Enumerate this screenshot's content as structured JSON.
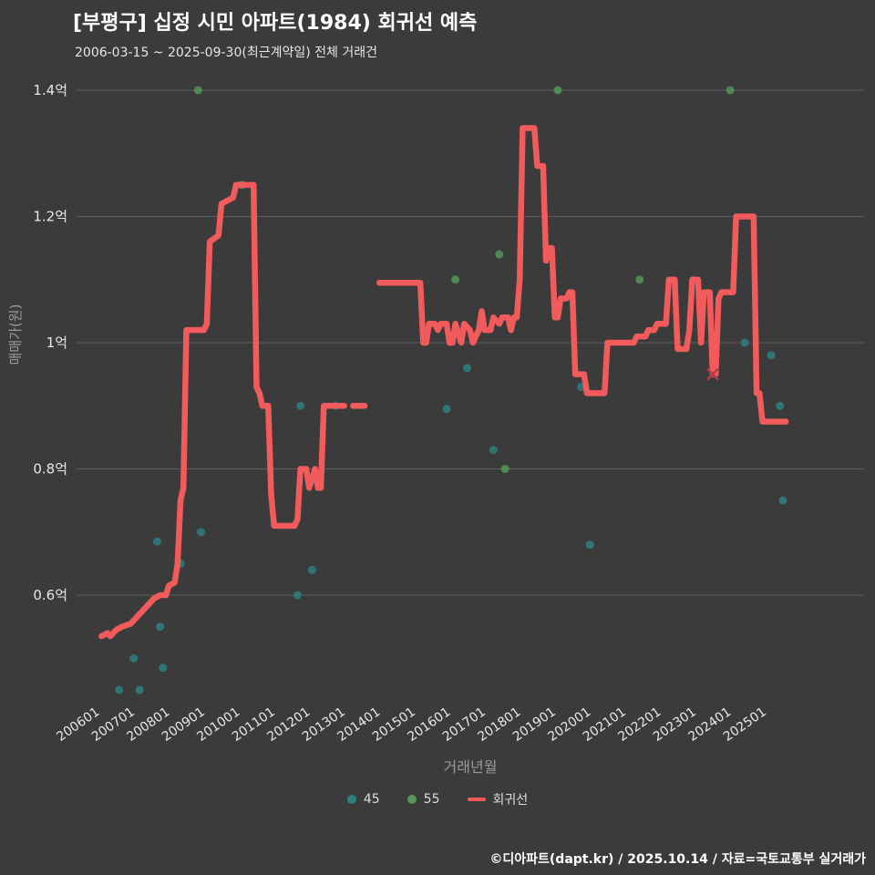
{
  "header": {
    "title": "[부평구] 십정 시민 아파트(1984) 회귀선 예측",
    "subtitle": "2006-03-15 ~ 2025-09-30(최근계약일) 전체 거래건"
  },
  "footer": {
    "credit": "©디아파트(dapt.kr) / 2025.10.14 / 자료=국토교통부 실거래가"
  },
  "chart_data": {
    "type": "line+scatter",
    "title": "[부평구] 십정 시민 아파트(1984) 회귀선 예측",
    "subtitle": "2006-03-15 ~ 2025-09-30(최근계약일) 전체 거래건",
    "xlabel": "거래년월",
    "ylabel": "매매가(원)",
    "unit": "억",
    "ylim": [
      0.42,
      1.46
    ],
    "grid": true,
    "colors": {
      "background": "#3b3b3b",
      "gridline": "#5d5d5d",
      "tick_text": "#e8e8e8",
      "axis_title": "#9a9a9a",
      "regression": "#f25b5b",
      "scatter_45": "#2f8080",
      "scatter_55": "#569556",
      "marker_x": "#b63946"
    },
    "y_ticks": [
      {
        "value": 1.4,
        "label": "1.4억"
      },
      {
        "value": 1.2,
        "label": "1.2억"
      },
      {
        "value": 1.0,
        "label": "1억"
      },
      {
        "value": 0.8,
        "label": "0.8억"
      },
      {
        "value": 0.6,
        "label": "0.6억"
      }
    ],
    "x_ticks": [
      "200601",
      "200701",
      "200801",
      "200901",
      "201001",
      "201101",
      "201201",
      "201301",
      "201401",
      "201501",
      "201601",
      "201701",
      "201801",
      "201901",
      "202001",
      "202101",
      "202201",
      "202301",
      "202401",
      "202501"
    ],
    "legend": {
      "position": "bottom",
      "items": [
        {
          "label": "45",
          "type": "dot",
          "color": "#2f8080"
        },
        {
          "label": "55",
          "type": "dot",
          "color": "#569556"
        },
        {
          "label": "회귀선",
          "type": "line",
          "color": "#f25b5b"
        }
      ]
    },
    "series": [
      {
        "name": "45",
        "type": "scatter",
        "color": "#2f8080",
        "points": [
          [
            "200609",
            0.45
          ],
          [
            "200702",
            0.5
          ],
          [
            "200704",
            0.45
          ],
          [
            "200710",
            0.685
          ],
          [
            "200711",
            0.55
          ],
          [
            "200712",
            0.485
          ],
          [
            "200806",
            0.65
          ],
          [
            "200901",
            0.7
          ],
          [
            "201110",
            0.6
          ],
          [
            "201111",
            0.9
          ],
          [
            "201203",
            0.64
          ],
          [
            "201211",
            0.9
          ],
          [
            "201601",
            0.895
          ],
          [
            "201608",
            0.96
          ],
          [
            "201705",
            0.83
          ],
          [
            "201911",
            0.93
          ],
          [
            "202002",
            0.68
          ],
          [
            "202407",
            1.0
          ],
          [
            "202504",
            0.98
          ],
          [
            "202507",
            0.9
          ],
          [
            "202508",
            0.75
          ]
        ]
      },
      {
        "name": "55",
        "type": "scatter",
        "color": "#569556",
        "points": [
          [
            "200812",
            1.4
          ],
          [
            "201003",
            1.25
          ],
          [
            "201604",
            1.1
          ],
          [
            "201707",
            1.14
          ],
          [
            "201709",
            0.8
          ],
          [
            "201903",
            1.4
          ],
          [
            "202107",
            1.1
          ],
          [
            "202402",
            1.4
          ]
        ]
      },
      {
        "name": "회귀선",
        "type": "line",
        "color": "#f25b5b",
        "width": 6.5,
        "segments": [
          [
            [
              "200603",
              0.535
            ],
            [
              "200605",
              0.54
            ],
            [
              "200606",
              0.535
            ],
            [
              "200608",
              0.545
            ],
            [
              "200610",
              0.55
            ],
            [
              "200701",
              0.555
            ],
            [
              "200703",
              0.565
            ],
            [
              "200705",
              0.575
            ],
            [
              "200707",
              0.585
            ],
            [
              "200709",
              0.595
            ],
            [
              "200711",
              0.6
            ],
            [
              "200801",
              0.6
            ],
            [
              "200802",
              0.615
            ],
            [
              "200804",
              0.62
            ],
            [
              "200805",
              0.65
            ],
            [
              "200806",
              0.75
            ],
            [
              "200807",
              0.77
            ],
            [
              "200808",
              1.02
            ],
            [
              "200902",
              1.02
            ],
            [
              "200903",
              1.03
            ],
            [
              "200904",
              1.16
            ],
            [
              "200907",
              1.17
            ],
            [
              "200908",
              1.22
            ],
            [
              "200912",
              1.23
            ],
            [
              "201001",
              1.25
            ],
            [
              "201007",
              1.25
            ],
            [
              "201008",
              0.93
            ],
            [
              "201009",
              0.92
            ],
            [
              "201010",
              0.9
            ],
            [
              "201012",
              0.9
            ],
            [
              "201101",
              0.76
            ],
            [
              "201102",
              0.71
            ],
            [
              "201109",
              0.71
            ],
            [
              "201110",
              0.72
            ],
            [
              "201111",
              0.8
            ],
            [
              "201201",
              0.8
            ],
            [
              "201202",
              0.77
            ],
            [
              "201204",
              0.8
            ],
            [
              "201205",
              0.77
            ],
            [
              "201206",
              0.77
            ],
            [
              "201207",
              0.9
            ],
            [
              "201302",
              0.9
            ]
          ],
          [
            [
              "201305",
              0.9
            ],
            [
              "201309",
              0.9
            ]
          ],
          [
            [
              "201402",
              1.095
            ],
            [
              "201504",
              1.095
            ],
            [
              "201505",
              1.0
            ],
            [
              "201506",
              1.0
            ],
            [
              "201507",
              1.03
            ],
            [
              "201509",
              1.03
            ],
            [
              "201510",
              1.02
            ],
            [
              "201511",
              1.03
            ],
            [
              "201601",
              1.03
            ],
            [
              "201602",
              1.0
            ],
            [
              "201603",
              1.0
            ],
            [
              "201604",
              1.03
            ],
            [
              "201606",
              1.0
            ],
            [
              "201607",
              1.03
            ],
            [
              "201609",
              1.02
            ],
            [
              "201610",
              1.0
            ],
            [
              "201612",
              1.02
            ],
            [
              "201701",
              1.05
            ],
            [
              "201702",
              1.02
            ],
            [
              "201704",
              1.02
            ],
            [
              "201705",
              1.04
            ],
            [
              "201707",
              1.03
            ],
            [
              "201708",
              1.04
            ],
            [
              "201710",
              1.04
            ],
            [
              "201711",
              1.02
            ],
            [
              "201712",
              1.04
            ],
            [
              "201801",
              1.04
            ],
            [
              "201802",
              1.1
            ],
            [
              "201803",
              1.34
            ],
            [
              "201807",
              1.34
            ],
            [
              "201808",
              1.28
            ],
            [
              "201810",
              1.28
            ],
            [
              "201811",
              1.13
            ],
            [
              "201812",
              1.15
            ],
            [
              "201901",
              1.15
            ],
            [
              "201902",
              1.04
            ],
            [
              "201903",
              1.04
            ],
            [
              "201904",
              1.07
            ],
            [
              "201906",
              1.07
            ],
            [
              "201907",
              1.08
            ],
            [
              "201908",
              1.08
            ],
            [
              "201909",
              0.95
            ],
            [
              "201912",
              0.95
            ],
            [
              "202001",
              0.92
            ],
            [
              "202007",
              0.92
            ],
            [
              "202008",
              1.0
            ],
            [
              "202105",
              1.0
            ],
            [
              "202106",
              1.01
            ],
            [
              "202109",
              1.01
            ],
            [
              "202110",
              1.02
            ],
            [
              "202112",
              1.02
            ],
            [
              "202201",
              1.03
            ],
            [
              "202204",
              1.03
            ],
            [
              "202205",
              1.1
            ],
            [
              "202207",
              1.1
            ],
            [
              "202208",
              0.99
            ],
            [
              "202211",
              0.99
            ],
            [
              "202212",
              1.02
            ],
            [
              "202301",
              1.1
            ],
            [
              "202303",
              1.1
            ],
            [
              "202304",
              1.0
            ],
            [
              "202305",
              1.08
            ],
            [
              "202307",
              1.08
            ],
            [
              "202308",
              0.95
            ],
            [
              "202309",
              0.95
            ],
            [
              "202310",
              1.07
            ],
            [
              "202311",
              1.08
            ],
            [
              "202403",
              1.08
            ],
            [
              "202404",
              1.2
            ],
            [
              "202410",
              1.2
            ],
            [
              "202411",
              0.92
            ],
            [
              "202412",
              0.92
            ],
            [
              "202501",
              0.875
            ],
            [
              "202509",
              0.875
            ]
          ]
        ]
      }
    ],
    "marker": {
      "name": "prediction-x",
      "x": "202308",
      "value": 0.95,
      "symbol": "x",
      "color": "#b63946"
    }
  }
}
